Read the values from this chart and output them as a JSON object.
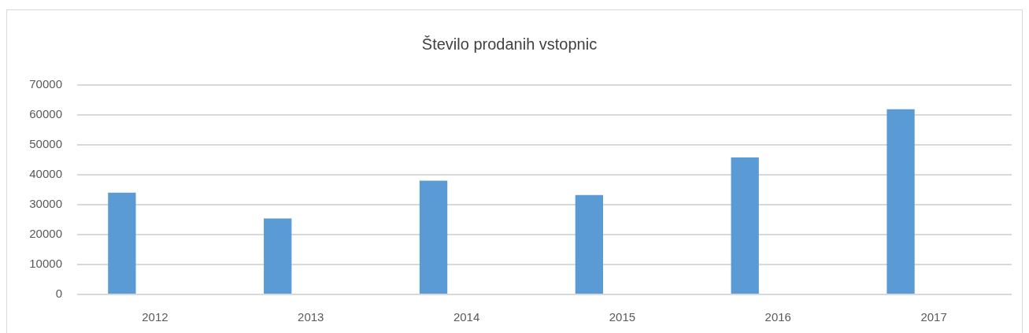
{
  "chart_data": {
    "type": "bar",
    "title": "Število prodanih vstopnic",
    "categories": [
      "2012",
      "2013",
      "2014",
      "2015",
      "2016",
      "2017"
    ],
    "values": [
      34000,
      25400,
      38000,
      33200,
      45800,
      61900
    ],
    "color": "#5b9bd5",
    "ylim": [
      0,
      70000
    ],
    "yticks": [
      0,
      10000,
      20000,
      30000,
      40000,
      50000,
      60000,
      70000
    ],
    "grid": "y"
  }
}
